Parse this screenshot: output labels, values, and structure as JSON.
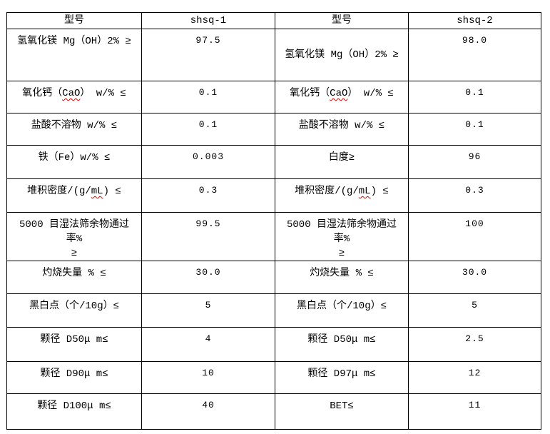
{
  "colors": {
    "background": "#ffffff",
    "border": "#000000",
    "text": "#000000",
    "spellcheck_underline": "#e00000"
  },
  "table": {
    "header": [
      {
        "text": "型号"
      },
      {
        "text": "shsq-1"
      },
      {
        "text": "型号"
      },
      {
        "text": "shsq-2"
      }
    ],
    "rows": [
      {
        "cells": [
          {
            "text": "氢氧化镁 Mg（OH）2% ≥"
          },
          {
            "text": "97.5"
          },
          {
            "text": "氢氧化镁 Mg（OH）2% ≥",
            "valign": "middle"
          },
          {
            "text": "98.0"
          }
        ]
      },
      {
        "cells": [
          {
            "text": "氧化钙（CaO） w/% ≤",
            "wavy": "CaO"
          },
          {
            "text": "0.1"
          },
          {
            "text": "氧化钙（CaO） w/% ≤",
            "wavy": "CaO"
          },
          {
            "text": "0.1"
          }
        ]
      },
      {
        "cells": [
          {
            "text": "盐酸不溶物 w/% ≤"
          },
          {
            "text": "0.1"
          },
          {
            "text": "盐酸不溶物 w/% ≤"
          },
          {
            "text": "0.1"
          }
        ]
      },
      {
        "cells": [
          {
            "text": "铁（Fe）w/% ≤"
          },
          {
            "text": "0.003"
          },
          {
            "text": "白度≥"
          },
          {
            "text": "96"
          }
        ]
      },
      {
        "cells": [
          {
            "text": "堆积密度/(g/mL) ≤",
            "wavy": "mL"
          },
          {
            "text": "0.3"
          },
          {
            "text": "堆积密度/(g/mL) ≤",
            "wavy": "mL"
          },
          {
            "text": "0.3"
          }
        ]
      },
      {
        "cells": [
          {
            "text": "5000 目湿法筛余物通过率%\n≥"
          },
          {
            "text": "99.5"
          },
          {
            "text": "5000 目湿法筛余物通过率%\n≥"
          },
          {
            "text": "100"
          }
        ]
      },
      {
        "cells": [
          {
            "text": "灼烧失量 % ≤"
          },
          {
            "text": "30.0"
          },
          {
            "text": "灼烧失量 % ≤"
          },
          {
            "text": "30.0"
          }
        ]
      },
      {
        "cells": [
          {
            "text": "黑白点（个/10g）≤"
          },
          {
            "text": "5"
          },
          {
            "text": "黑白点（个/10g）≤"
          },
          {
            "text": "5"
          }
        ]
      },
      {
        "cells": [
          {
            "text": "颗径 D50μ m≤"
          },
          {
            "text": "4"
          },
          {
            "text": "颗径 D50μ m≤"
          },
          {
            "text": "2.5"
          }
        ]
      },
      {
        "cells": [
          {
            "text": "颗径 D90μ m≤"
          },
          {
            "text": "10"
          },
          {
            "text": "颗径 D97μ m≤"
          },
          {
            "text": "12"
          }
        ]
      },
      {
        "cells": [
          {
            "text": "颗径 D100μ m≤"
          },
          {
            "text": "40"
          },
          {
            "text": "BET≤"
          },
          {
            "text": "11"
          }
        ]
      }
    ]
  }
}
